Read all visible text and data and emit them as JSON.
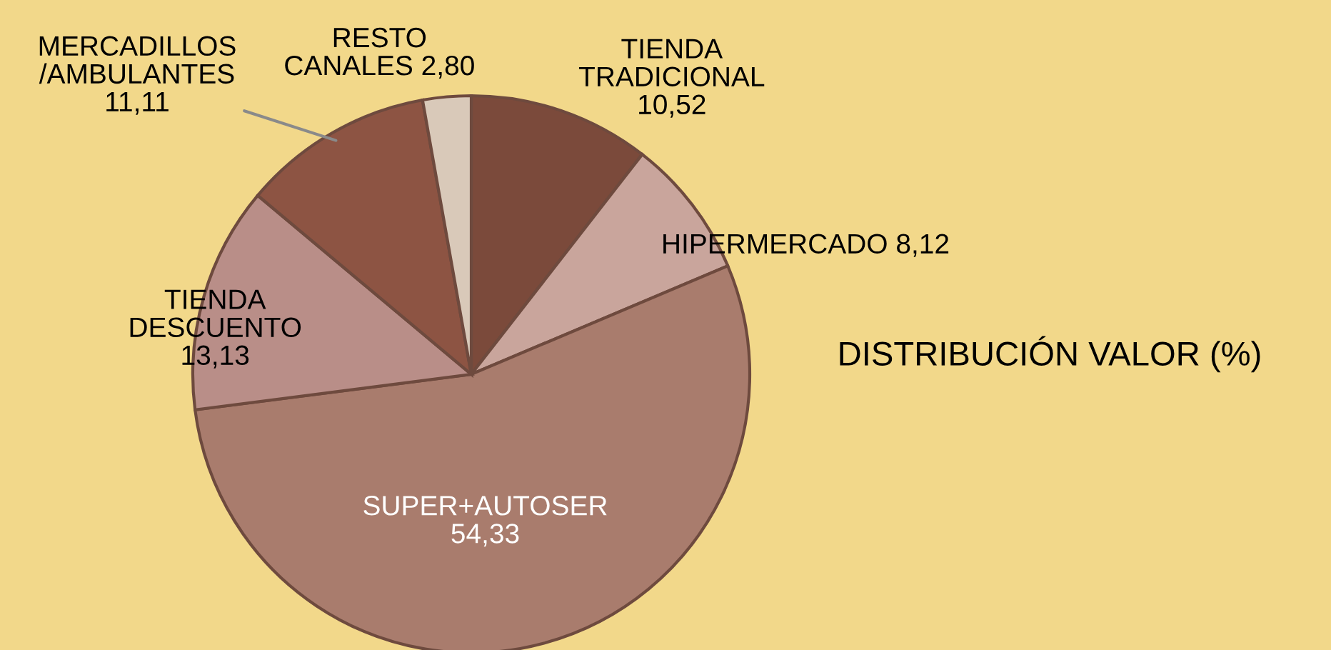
{
  "chart_data": {
    "type": "pie",
    "title": "DISTRIBUCIÓN VALOR (%)",
    "categories": [
      "TIENDA TRADICIONAL",
      "HIPERMERCADO",
      "SUPER+AUTOSER",
      "TIENDA DESCUENTO",
      "MERCADILLOS /AMBULANTES",
      "RESTO CANALES"
    ],
    "values": [
      10.52,
      8.12,
      54.33,
      13.13,
      11.11,
      2.8
    ],
    "value_labels": [
      "10,52",
      "8,12",
      "54,33",
      "13,13",
      "11,11",
      "2,80"
    ],
    "colors": [
      "#7b4a3b",
      "#c9a59c",
      "#a97c6d",
      "#b98e88",
      "#8d5443",
      "#d9c9b9"
    ],
    "legend": false
  }
}
